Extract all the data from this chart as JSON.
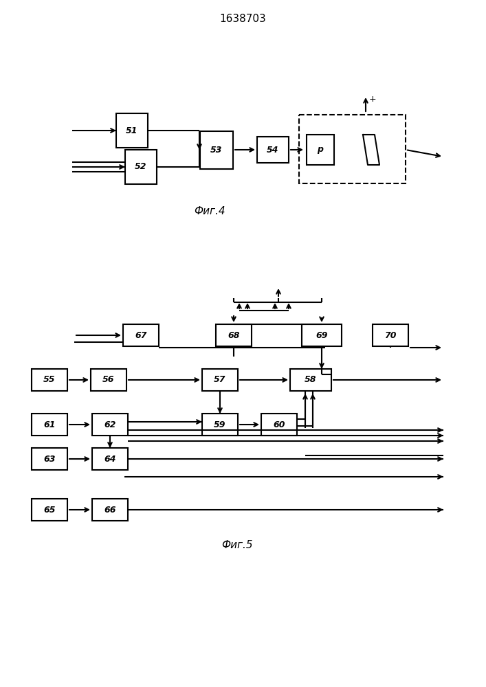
{
  "title": "1638703",
  "fig4_caption": "Фиг.4",
  "fig5_caption": "Фиг.5",
  "background_color": "#ffffff",
  "line_color": "#000000",
  "lw": 1.5
}
